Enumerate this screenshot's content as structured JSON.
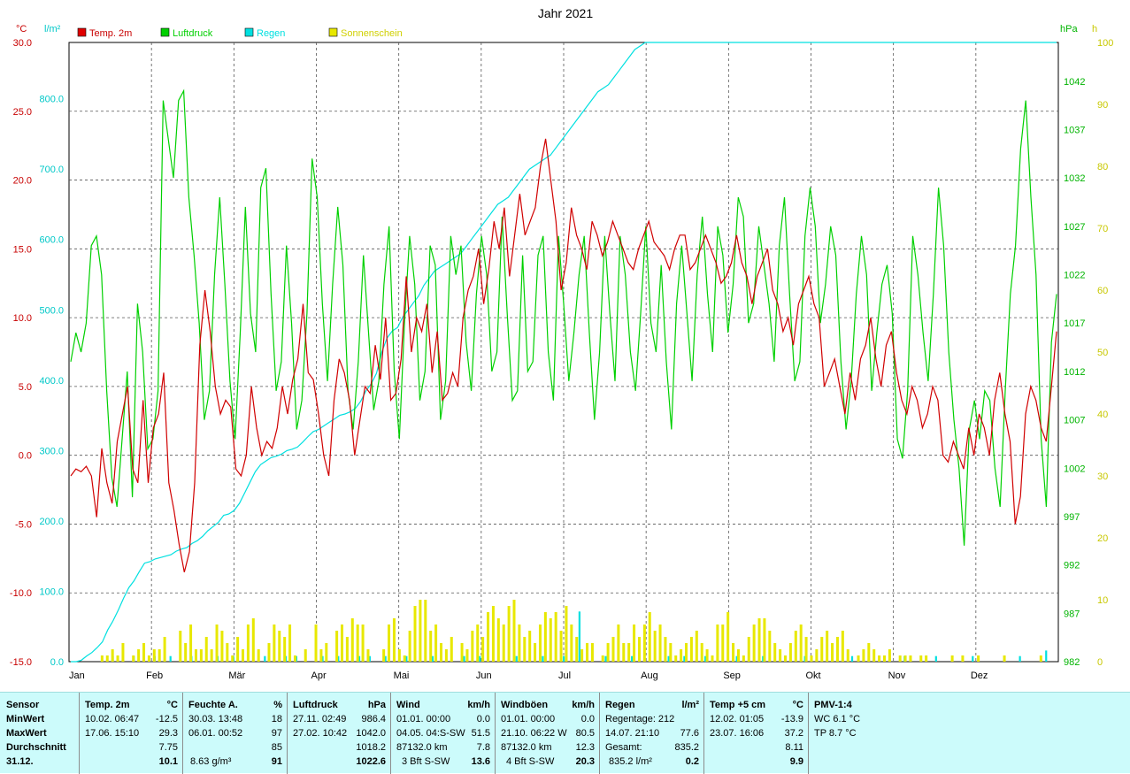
{
  "chart_data": {
    "type": "line",
    "title": "Jahr 2021",
    "months": [
      "Jan",
      "Feb",
      "Mär",
      "Apr",
      "Mai",
      "Jun",
      "Jul",
      "Aug",
      "Sep",
      "Okt",
      "Nov",
      "Dez"
    ],
    "axes": {
      "temperature": {
        "unit": "°C",
        "range": [
          -15,
          30
        ],
        "ticks": [
          "30.0",
          "25.0",
          "20.0",
          "15.0",
          "10.0",
          "5.0",
          "0.0",
          "-5.0",
          "-10.0",
          "-15.0"
        ],
        "color": "#c80000"
      },
      "rain": {
        "unit": "l/m²",
        "range": [
          0,
          880
        ],
        "ticks": [
          "800.0",
          "700.0",
          "600.0",
          "500.0",
          "400.0",
          "300.0",
          "200.0",
          "100.0",
          "0.0"
        ],
        "color": "#00c8c8"
      },
      "pressure": {
        "unit": "hPa",
        "range": [
          982,
          1046
        ],
        "ticks": [
          "1042",
          "1037",
          "1032",
          "1027",
          "1022",
          "1017",
          "1012",
          "1007",
          "1002",
          "997",
          "992",
          "987",
          "982"
        ],
        "color": "#00b400"
      },
      "sunshine": {
        "unit": "h",
        "range": [
          0,
          100
        ],
        "ticks": [
          "100",
          "90",
          "80",
          "70",
          "60",
          "50",
          "40",
          "30",
          "20",
          "10",
          "0"
        ],
        "color": "#c8c800"
      }
    },
    "legend": [
      {
        "name": "Temp. 2m",
        "color": "#e00000"
      },
      {
        "name": "Luftdruck",
        "color": "#00d000"
      },
      {
        "name": "Regen",
        "color": "#00e0e0"
      },
      {
        "name": "Sonnenschein",
        "color": "#e8e800"
      }
    ],
    "grid": true,
    "temperature_samples": [
      -1.5,
      -1,
      -1.2,
      -0.8,
      -1.5,
      -4.5,
      0.5,
      -2,
      -3.5,
      1,
      3,
      5,
      -1,
      -2,
      4,
      -2,
      2,
      3,
      6,
      -2,
      -4,
      -6.5,
      -8.5,
      -7,
      -2,
      8,
      12,
      9,
      5,
      3,
      4,
      3.5,
      -1,
      -1.5,
      0,
      5,
      2,
      0,
      1,
      0.5,
      2,
      5,
      3,
      5.5,
      7,
      11,
      6,
      5.5,
      3,
      0,
      -1.5,
      4,
      7,
      6,
      4,
      0,
      2.5,
      5,
      4.5,
      8,
      5.5,
      10,
      4,
      4.5,
      7,
      13,
      7.5,
      10,
      9,
      11,
      6,
      9,
      4,
      4.5,
      6,
      5,
      10,
      12,
      13,
      15,
      11,
      13.5,
      17,
      15,
      18,
      13,
      16,
      19,
      16,
      17,
      18,
      21,
      23,
      20,
      17,
      12,
      14,
      18,
      16,
      15,
      13.5,
      17,
      16,
      14.5,
      15.5,
      17,
      16,
      15,
      14,
      13.5,
      15,
      16,
      17,
      15.5,
      15,
      14.5,
      13.5,
      15,
      16,
      16,
      13.5,
      14,
      15,
      16,
      15,
      14,
      12.5,
      13,
      14,
      16,
      14,
      13,
      11,
      13,
      14,
      15,
      12,
      11,
      9,
      10,
      8,
      11,
      12,
      13,
      11,
      10,
      5,
      6,
      7,
      5,
      3,
      6,
      4,
      7,
      8,
      10,
      7,
      5,
      8,
      9,
      6,
      4,
      3,
      5,
      4,
      2,
      3,
      5,
      4,
      0,
      -0.5,
      1,
      0,
      -1,
      2,
      0,
      3,
      2,
      0,
      4,
      6,
      3,
      1,
      -5,
      -3,
      3,
      5,
      4,
      2,
      1,
      5,
      9
    ],
    "pressure_samples": [
      1013,
      1016,
      1014,
      1017,
      1025,
      1026,
      1022,
      1010,
      1001,
      998,
      1005,
      1012,
      999,
      1019,
      1014,
      1004,
      1005,
      1010,
      1040,
      1036,
      1032,
      1040,
      1041,
      1030,
      1024,
      1017,
      1007,
      1010,
      1022,
      1030,
      1021,
      1011,
      1005,
      1016,
      1029,
      1018,
      1014,
      1031,
      1033,
      1020,
      1010,
      1013,
      1025,
      1017,
      1006,
      1009,
      1018,
      1034,
      1030,
      1019,
      1011,
      1021,
      1029,
      1023,
      1010,
      1006,
      1013,
      1024,
      1016,
      1008,
      1011,
      1021,
      1027,
      1012,
      1005,
      1017,
      1026,
      1021,
      1009,
      1012,
      1025,
      1023,
      1007,
      1011,
      1026,
      1022,
      1025,
      1015,
      1010,
      1020,
      1026,
      1022,
      1012,
      1014,
      1028,
      1018,
      1009,
      1010,
      1024,
      1012,
      1013,
      1024,
      1026,
      1014,
      1009,
      1026,
      1019,
      1011,
      1016,
      1022,
      1026,
      1016,
      1007,
      1014,
      1026,
      1018,
      1011,
      1026,
      1022,
      1014,
      1010,
      1018,
      1027,
      1017,
      1014,
      1023,
      1013,
      1006,
      1019,
      1025,
      1018,
      1011,
      1022,
      1028,
      1020,
      1014,
      1027,
      1024,
      1016,
      1021,
      1030,
      1028,
      1017,
      1019,
      1027,
      1023,
      1019,
      1013,
      1025,
      1030,
      1020,
      1011,
      1013,
      1026,
      1031,
      1027,
      1017,
      1021,
      1027,
      1024,
      1013,
      1006,
      1011,
      1020,
      1026,
      1022,
      1010,
      1016,
      1021,
      1023,
      1018,
      1005,
      1003,
      1010,
      1026,
      1022,
      1016,
      1011,
      1020,
      1031,
      1025,
      1014,
      1007,
      1002,
      994,
      1006,
      1009,
      1005,
      1010,
      1009,
      1002,
      998,
      1010,
      1020,
      1025,
      1035,
      1040,
      1030,
      1022,
      1005,
      998,
      1015,
      1020
    ],
    "rain_samples": [
      0,
      0,
      2,
      8,
      13,
      20,
      28,
      45,
      58,
      73,
      90,
      105,
      115,
      128,
      140,
      142,
      146,
      148,
      150,
      152,
      157,
      160,
      162,
      168,
      172,
      178,
      186,
      192,
      198,
      208,
      210,
      215,
      225,
      240,
      255,
      270,
      280,
      285,
      290,
      292,
      295,
      300,
      302,
      305,
      312,
      320,
      327,
      330,
      335,
      340,
      345,
      350,
      352,
      355,
      360,
      370,
      385,
      395,
      410,
      440,
      460,
      470,
      475,
      490,
      500,
      510,
      520,
      535,
      545,
      555,
      560,
      565,
      570,
      575,
      580,
      590,
      600,
      610,
      620,
      630,
      640,
      650,
      655,
      660,
      670,
      680,
      690,
      700,
      705,
      710,
      715,
      720,
      730,
      740,
      750,
      760,
      770,
      780,
      790,
      800,
      810,
      815,
      820,
      830,
      840,
      850,
      860,
      870,
      875,
      880,
      880,
      880,
      880,
      880,
      880,
      880,
      880,
      880,
      880,
      880,
      880,
      880,
      880,
      880,
      880,
      880,
      880,
      880,
      880,
      880,
      880,
      880,
      880,
      880,
      880,
      880,
      880,
      880,
      880,
      880,
      880,
      880,
      880,
      880,
      880,
      880,
      880,
      880,
      880,
      880,
      880,
      880,
      880,
      880,
      880,
      880,
      880,
      880,
      880,
      880,
      880,
      880,
      880,
      880,
      880,
      880,
      880,
      880,
      880,
      880,
      880,
      880,
      880,
      880,
      880,
      880,
      880,
      880,
      880,
      880,
      880,
      880,
      880,
      880,
      880,
      880,
      880,
      880
    ],
    "sunshine_samples": [
      0,
      0,
      0,
      0,
      0,
      0,
      1,
      1,
      2,
      1,
      3,
      0,
      1,
      2,
      3,
      1,
      2,
      2,
      4,
      0,
      0,
      5,
      3,
      6,
      2,
      2,
      4,
      2,
      6,
      5,
      3,
      1,
      4,
      2,
      6,
      7,
      2,
      0,
      3,
      6,
      5,
      4,
      6,
      1,
      0,
      2,
      0,
      6,
      2,
      3,
      0,
      5,
      6,
      4,
      7,
      6,
      6,
      2,
      0,
      0,
      2,
      6,
      7,
      2,
      1,
      5,
      9,
      10,
      10,
      5,
      6,
      3,
      2,
      4,
      0,
      3,
      2,
      5,
      6,
      4,
      8,
      9,
      7,
      6,
      9,
      10,
      6,
      4,
      5,
      3,
      6,
      8,
      7,
      8,
      5,
      9,
      6,
      4,
      2,
      3,
      3,
      0,
      1,
      3,
      4,
      6,
      3,
      3,
      6,
      4,
      6,
      8,
      5,
      6,
      4,
      3,
      1,
      2,
      3,
      4,
      5,
      3,
      2,
      1,
      6,
      6,
      8,
      3,
      2,
      1,
      4,
      6,
      7,
      7,
      5,
      3,
      2,
      1,
      3,
      5,
      6,
      4,
      1,
      2,
      4,
      5,
      3,
      4,
      5,
      2,
      0,
      1,
      2,
      3,
      2,
      1,
      1,
      2,
      0,
      1,
      1,
      1,
      0,
      1,
      1,
      0,
      0,
      0,
      0,
      1,
      0,
      1,
      0,
      0,
      1,
      0,
      0,
      0,
      0,
      1,
      0,
      0,
      0,
      0,
      0,
      0,
      1,
      0,
      0,
      0
    ],
    "rain_bar_samples": [
      0,
      0,
      0,
      0,
      0,
      0,
      0,
      0,
      1,
      0,
      0,
      0,
      1,
      0,
      0,
      0,
      1,
      0,
      0,
      1,
      0,
      0,
      0,
      1,
      0,
      0,
      0,
      0,
      1,
      0,
      0,
      1,
      0,
      0,
      0,
      0,
      0,
      1,
      0,
      0,
      0,
      1,
      0,
      1,
      0,
      0,
      0,
      0,
      1,
      0,
      0,
      1,
      0,
      0,
      0,
      1,
      0,
      1,
      0,
      0,
      1,
      0,
      0,
      0,
      1,
      0,
      0,
      0,
      0,
      1,
      0,
      0,
      0,
      0,
      0,
      1,
      0,
      0,
      1,
      0,
      0,
      0,
      0,
      0,
      0,
      1,
      0,
      0,
      0,
      0,
      1,
      0,
      0,
      0,
      1,
      0,
      0,
      9,
      0,
      0,
      0,
      0,
      1,
      0,
      0,
      0,
      0,
      1,
      0,
      0,
      0,
      0,
      0,
      0,
      1,
      0,
      0,
      1,
      0,
      0,
      0,
      1,
      0,
      0,
      0,
      0,
      0,
      1,
      0,
      0,
      0,
      0,
      1,
      0,
      0,
      0,
      0,
      0,
      0,
      0,
      1,
      0,
      0,
      0,
      0,
      0,
      0,
      0,
      0,
      1,
      0,
      0,
      0,
      0,
      0,
      0,
      0,
      0,
      0,
      1,
      0,
      0,
      0,
      0,
      0,
      1,
      0,
      0,
      0,
      0,
      0,
      0,
      1,
      0,
      0,
      0,
      0,
      0,
      0,
      0,
      0,
      1,
      0,
      0,
      0,
      0,
      2,
      0,
      0
    ]
  },
  "stats": {
    "sensor": {
      "header": "Sensor",
      "min_label": "MinWert",
      "max_label": "MaxWert",
      "avg_label": "Durchschnitt",
      "date": "31.12."
    },
    "temp": {
      "header": "Temp. 2m",
      "unit": "°C",
      "min_time": "10.02.  06:47",
      "min_val": "-12.5",
      "max_time": "17.06.  15:10",
      "max_val": "29.3",
      "avg": "7.75",
      "current": "10.1"
    },
    "humidity": {
      "header": "Feuchte A.",
      "unit": "%",
      "min_time": "30.03.  13:48",
      "min_val": "18",
      "max_time": "06.01.  00:52",
      "max_val": "97",
      "avg": "85",
      "abs": "8.63 g/m³",
      "current": "91"
    },
    "pressure": {
      "header": "Luftdruck",
      "unit": "hPa",
      "min_time": "27.11.  02:49",
      "min_val": "986.4",
      "max_time": "27.02.  10:42",
      "max_val": "1042.0",
      "avg": "1018.2",
      "current": "1022.6"
    },
    "wind": {
      "header": "Wind",
      "unit": "km/h",
      "min_time": "01.01.  00:00",
      "min_val": "0.0",
      "max_time": "04.05.  04:S-SW",
      "max_val": "51.5",
      "dist": "87132.0 km",
      "avg": "7.8",
      "bft": "3 Bft S-SW",
      "current": "13.6"
    },
    "gusts": {
      "header": "Windböen",
      "unit": "km/h",
      "min_time": "01.01.  00:00",
      "min_val": "0.0",
      "max_time": "21.10.  06:22  W",
      "max_val": "80.5",
      "dist": "87132.0 km",
      "avg": "12.3",
      "bft": "4 Bft S-SW",
      "current": "20.3"
    },
    "rain": {
      "header": "Regen",
      "unit": "l/m²",
      "days": "Regentage: 212",
      "max_time": "14.07.  21:10",
      "max_val": "77.6",
      "total_label": "Gesamt:",
      "total": "835.2",
      "total_text": "835.2 l/m²",
      "current": "0.2"
    },
    "temp5": {
      "header": "Temp +5 cm",
      "unit": "°C",
      "min_time": "12.02.  01:05",
      "min_val": "-13.9",
      "max_time": "23.07.  16:06",
      "max_val": "37.2",
      "avg": "8.11",
      "current": "9.9"
    },
    "pmv": {
      "header": "PMV-1:4",
      "wc": "WC 6.1 °C",
      "tp": "TP 8.7 °C"
    }
  }
}
